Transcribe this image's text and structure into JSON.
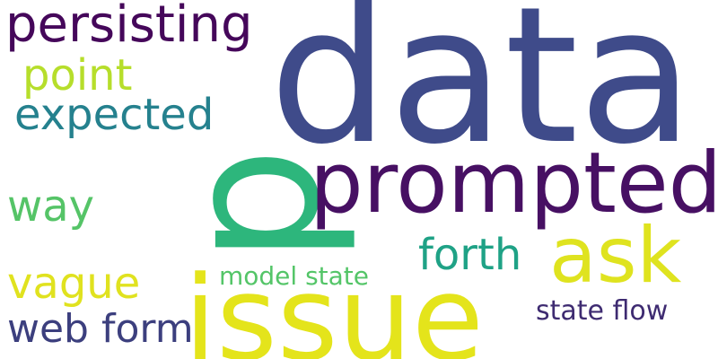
{
  "words": {
    "data": {
      "text": "data",
      "color": "#3f4b8a"
    },
    "p": {
      "text": "p",
      "color": "#2db67c"
    },
    "prompted": {
      "text": "prompted",
      "color": "#471063"
    },
    "issue": {
      "text": "issue",
      "color": "#e4e41b"
    },
    "ask": {
      "text": "ask",
      "color": "#dfe31f"
    },
    "persisting": {
      "text": "persisting",
      "color": "#45075a"
    },
    "point": {
      "text": "point",
      "color": "#b6de2b"
    },
    "expected": {
      "text": "expected",
      "color": "#25818e"
    },
    "way": {
      "text": "way",
      "color": "#55c467"
    },
    "vague": {
      "text": "vague",
      "color": "#e0e21f"
    },
    "forth": {
      "text": "forth",
      "color": "#1fa286"
    },
    "model_state": {
      "text": "model state",
      "color": "#54c568"
    },
    "state_flow": {
      "text": "state flow",
      "color": "#3e2b71"
    },
    "web_form": {
      "text": "web form",
      "color": "#3c3f7e"
    }
  }
}
